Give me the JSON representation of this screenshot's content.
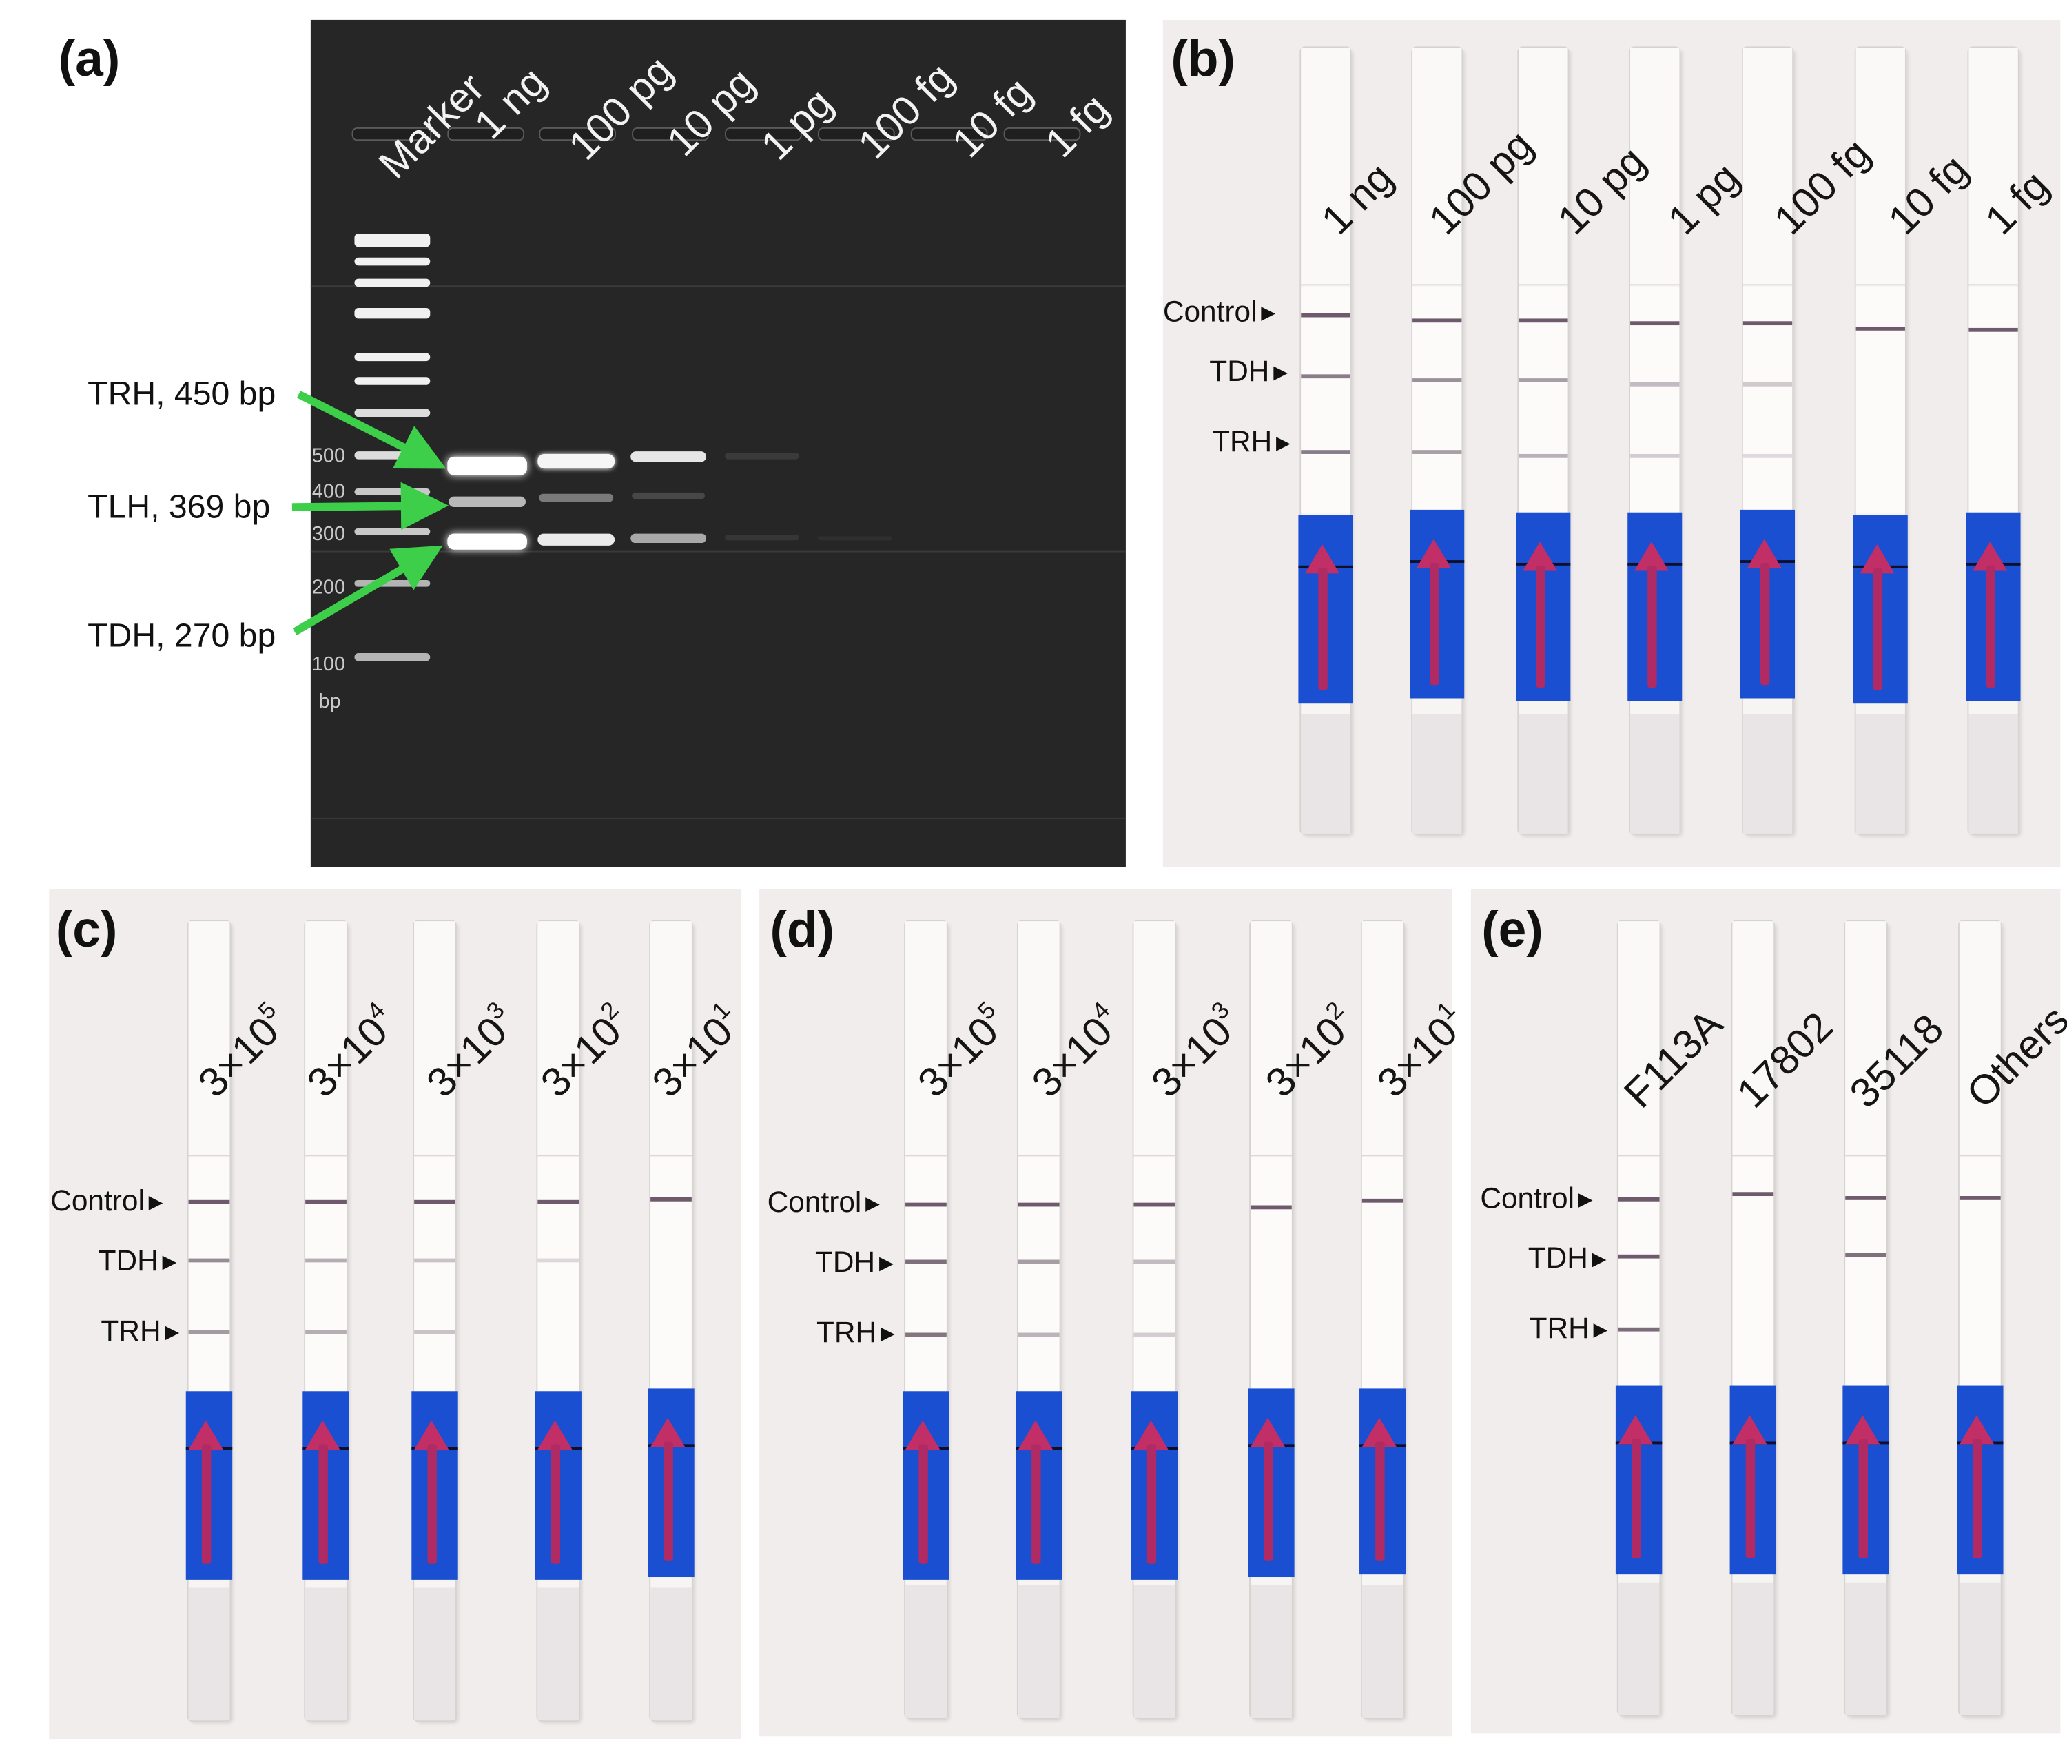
{
  "panels": {
    "a": {
      "letter": "(a)",
      "lanes": [
        "Marker",
        "1 ng",
        "100 pg",
        "10 pg",
        "1 pg",
        "100 fg",
        "10 fg",
        "1 fg"
      ],
      "ladder_sizes": [
        "500",
        "400",
        "300",
        "200",
        "100"
      ],
      "ladder_unit": "bp",
      "band_annotations": [
        {
          "label": "TRH, 450 bp",
          "color": "#3ecf4a"
        },
        {
          "label": "TLH, 369 bp",
          "color": "#3ecf4a"
        },
        {
          "label": "TDH, 270 bp",
          "color": "#3ecf4a"
        }
      ]
    },
    "b": {
      "letter": "(b)",
      "strip_labels": [
        "1 ng",
        "100 pg",
        "10 pg",
        "1 pg",
        "100 fg",
        "10 fg",
        "1 fg"
      ],
      "line_labels": [
        "Control",
        "TDH",
        "TRH"
      ]
    },
    "c": {
      "letter": "(c)",
      "strip_labels": [
        {
          "base": "3×10",
          "exp": "5"
        },
        {
          "base": "3×10",
          "exp": "4"
        },
        {
          "base": "3×10",
          "exp": "3"
        },
        {
          "base": "3×10",
          "exp": "2"
        },
        {
          "base": "3×10",
          "exp": "1"
        }
      ],
      "line_labels": [
        "Control",
        "TDH",
        "TRH"
      ]
    },
    "d": {
      "letter": "(d)",
      "strip_labels": [
        {
          "base": "3×10",
          "exp": "5"
        },
        {
          "base": "3×10",
          "exp": "4"
        },
        {
          "base": "3×10",
          "exp": "3"
        },
        {
          "base": "3×10",
          "exp": "2"
        },
        {
          "base": "3×10",
          "exp": "1"
        }
      ],
      "line_labels": [
        "Control",
        "TDH",
        "TRH"
      ]
    },
    "e": {
      "letter": "(e)",
      "strip_labels": [
        "F113A",
        "17802",
        "35118",
        "Others"
      ],
      "line_labels": [
        "Control",
        "TDH",
        "TRH"
      ]
    }
  },
  "colors": {
    "gel_background": "#262626",
    "band": "#ffffff",
    "strip_blue": "#1a4fd1",
    "line_purple": "#6e5a6c",
    "annotation_arrow": "#3ecf4a"
  }
}
